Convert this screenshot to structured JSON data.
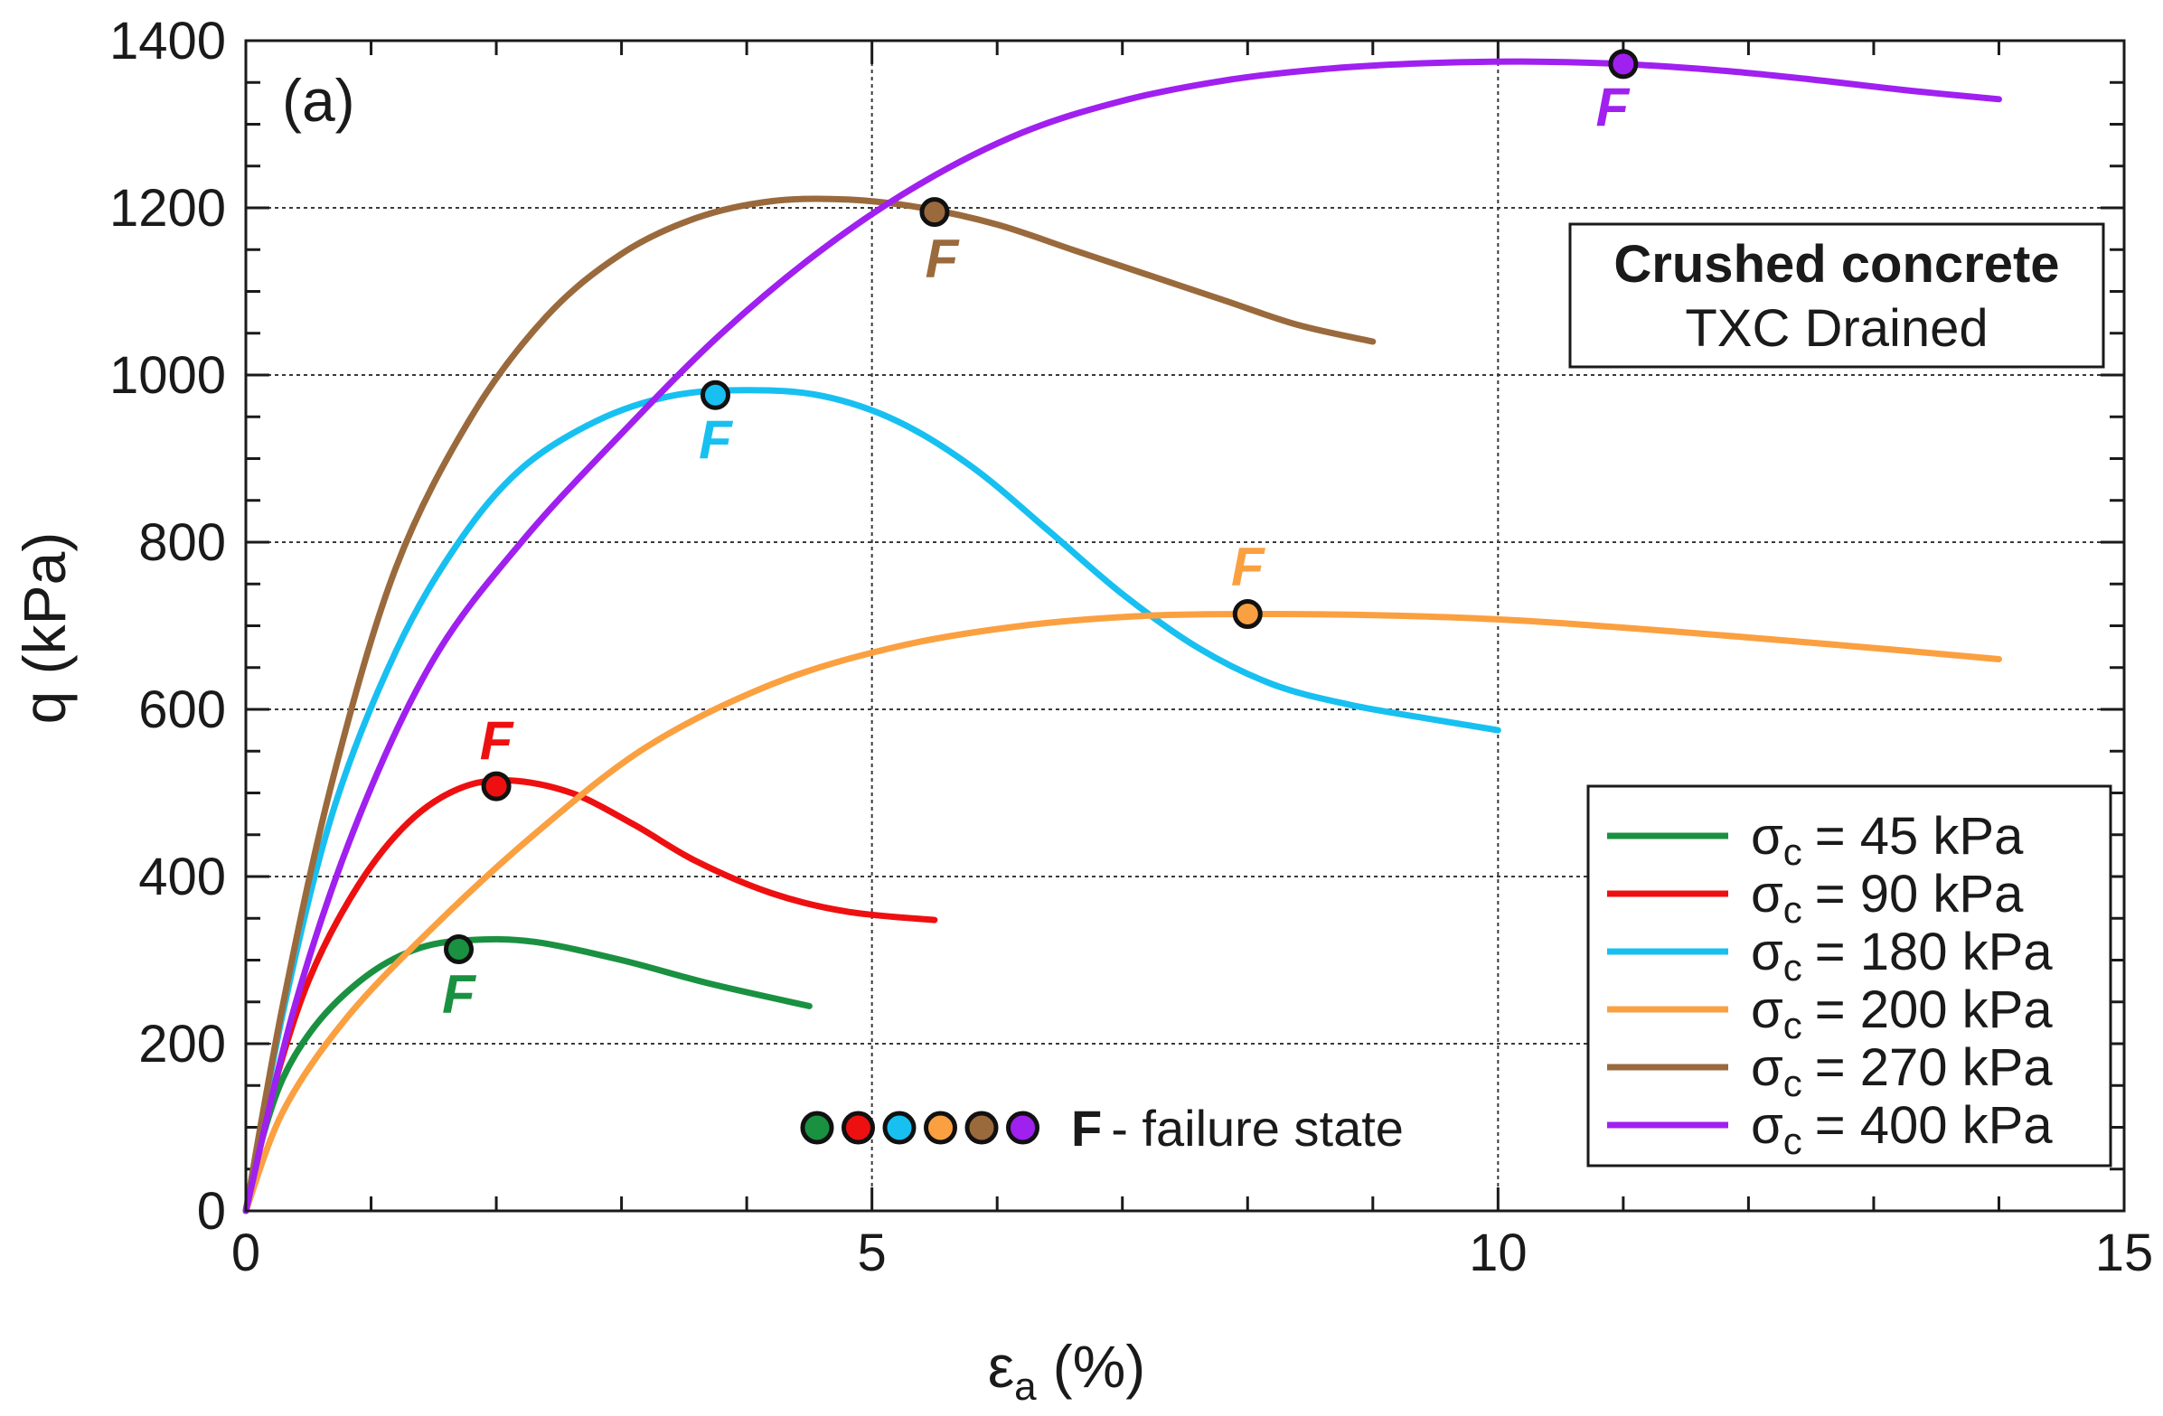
{
  "chart_data": {
    "type": "line",
    "panel_label": "(a)",
    "title": "Crushed concrete",
    "subtitle": "TXC Drained",
    "xlabel_main": "ε",
    "xlabel_sub": "a",
    "xlabel_unit": "(%)",
    "ylabel": "q (kPa)",
    "xlim": [
      0,
      15
    ],
    "ylim": [
      0,
      1400
    ],
    "xticks": [
      0,
      5,
      10,
      15
    ],
    "yticks": [
      0,
      200,
      400,
      600,
      800,
      1000,
      1200,
      1400
    ],
    "x_minor_step": 1,
    "y_minor_step": 50,
    "failure_marker_label": "F",
    "failure_note_bold": "F",
    "failure_note_text": "-  failure state",
    "legend_position": "bottom-right",
    "series": [
      {
        "name": "σc = 45 kPa",
        "sigma_symbol": "σ",
        "sigma_sub": "c",
        "legend_rest": "= 45 kPa",
        "color": "#1a9141",
        "x": [
          0,
          0.1,
          0.3,
          0.6,
          1.0,
          1.4,
          1.8,
          2.3,
          3.0,
          3.7,
          4.5
        ],
        "y": [
          0,
          70,
          160,
          230,
          285,
          315,
          324,
          322,
          300,
          272,
          245
        ],
        "failure": {
          "x": 1.7,
          "y": 313
        }
      },
      {
        "name": "σc = 90 kPa",
        "sigma_symbol": "σ",
        "sigma_sub": "c",
        "legend_rest": "= 90 kPa",
        "color": "#ee1010",
        "x": [
          0,
          0.2,
          0.5,
          0.9,
          1.3,
          1.7,
          2.1,
          2.6,
          3.1,
          3.6,
          4.2,
          4.8,
          5.5
        ],
        "y": [
          0,
          135,
          275,
          390,
          465,
          505,
          515,
          500,
          462,
          418,
          380,
          358,
          348
        ],
        "failure": {
          "x": 2.0,
          "y": 508
        }
      },
      {
        "name": "σc = 180 kPa",
        "sigma_symbol": "σ",
        "sigma_sub": "c",
        "legend_rest": "= 180 kPa",
        "color": "#17c0f0",
        "x": [
          0,
          0.3,
          0.7,
          1.2,
          1.7,
          2.2,
          2.8,
          3.4,
          4.0,
          4.6,
          5.2,
          5.8,
          6.4,
          7.0,
          7.6,
          8.2,
          8.8,
          9.4,
          10.0
        ],
        "y": [
          0,
          240,
          480,
          670,
          800,
          888,
          945,
          975,
          982,
          975,
          945,
          890,
          815,
          738,
          674,
          630,
          606,
          590,
          575
        ],
        "failure": {
          "x": 3.75,
          "y": 976
        }
      },
      {
        "name": "σc = 200 kPa",
        "sigma_symbol": "σ",
        "sigma_sub": "c",
        "legend_rest": "= 200 kPa",
        "color": "#fba040",
        "x": [
          0,
          0.3,
          0.8,
          1.5,
          2.3,
          3.2,
          4.2,
          5.2,
          6.2,
          7.2,
          8.2,
          9.2,
          10.2,
          11.5,
          12.8,
          14.0
        ],
        "y": [
          0,
          120,
          230,
          340,
          450,
          555,
          630,
          675,
          700,
          712,
          714,
          712,
          706,
          692,
          676,
          660
        ],
        "failure": {
          "x": 8.0,
          "y": 714
        }
      },
      {
        "name": "σc = 270 kPa",
        "sigma_symbol": "σ",
        "sigma_sub": "c",
        "legend_rest": "= 270 kPa",
        "color": "#9a6a3c",
        "x": [
          0,
          0.3,
          0.7,
          1.2,
          1.8,
          2.4,
          3.0,
          3.6,
          4.2,
          4.8,
          5.4,
          6.0,
          6.6,
          7.2,
          7.8,
          8.4,
          9.0
        ],
        "y": [
          0,
          250,
          520,
          770,
          950,
          1070,
          1145,
          1188,
          1208,
          1210,
          1200,
          1180,
          1150,
          1120,
          1090,
          1060,
          1040
        ],
        "failure": {
          "x": 5.5,
          "y": 1195
        }
      },
      {
        "name": "σc = 400 kPa",
        "sigma_symbol": "σ",
        "sigma_sub": "c",
        "legend_rest": "= 400 kPa",
        "color": "#a020f0",
        "x": [
          0,
          0.4,
          0.9,
          1.5,
          2.2,
          3.0,
          3.8,
          4.6,
          5.4,
          6.2,
          7.0,
          7.8,
          8.6,
          9.4,
          10.2,
          11.0,
          11.8,
          12.6,
          13.3,
          14.0
        ],
        "y": [
          0,
          250,
          470,
          660,
          800,
          930,
          1050,
          1150,
          1230,
          1290,
          1328,
          1352,
          1366,
          1373,
          1375,
          1372,
          1364,
          1352,
          1340,
          1330
        ],
        "failure": {
          "x": 11.0,
          "y": 1372
        }
      }
    ]
  }
}
